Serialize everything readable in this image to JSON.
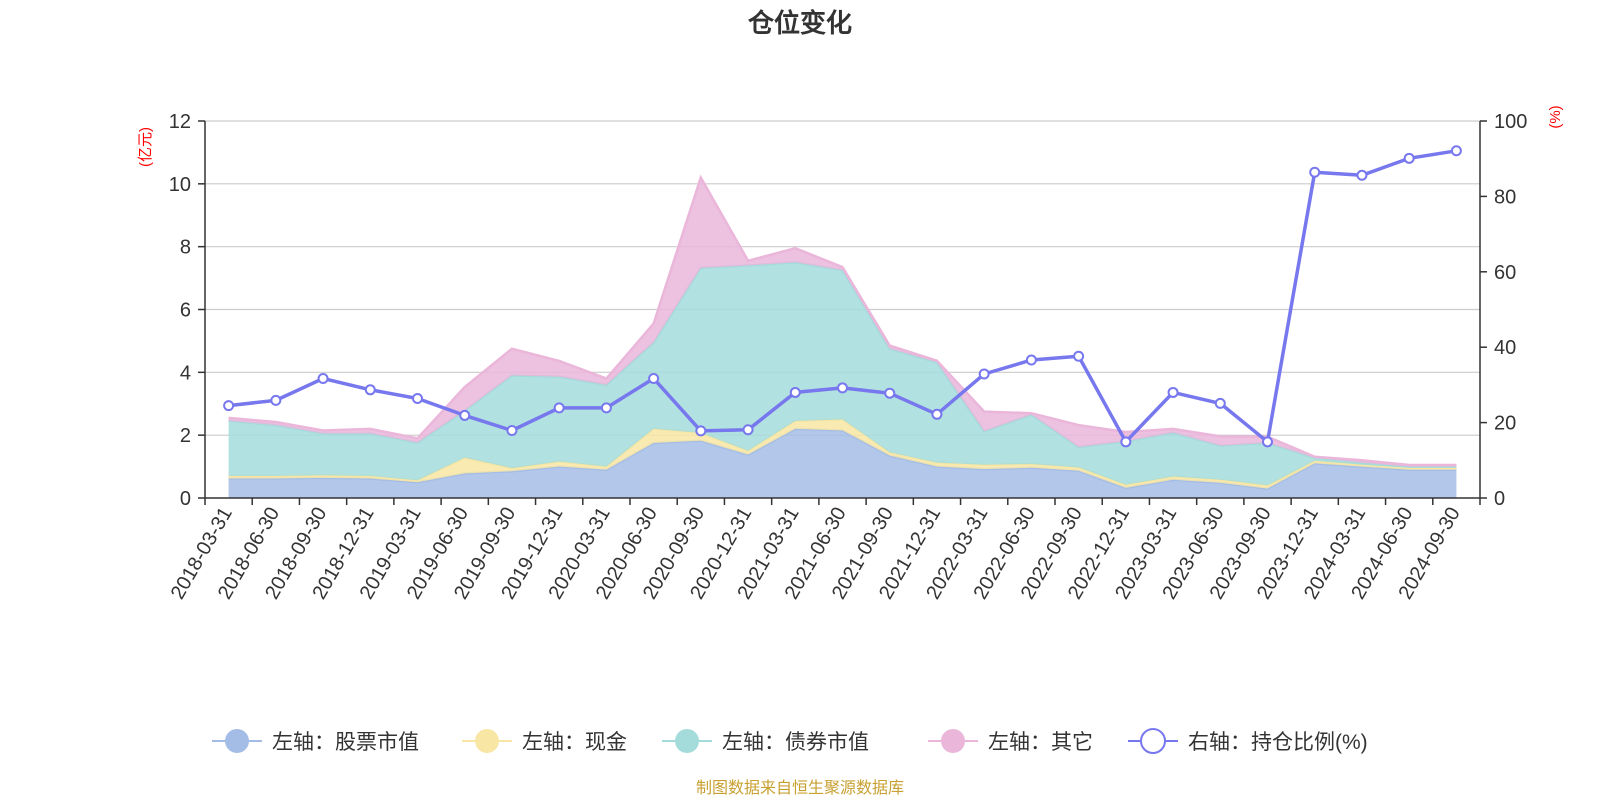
{
  "title": "仓位变化",
  "source_note": "制图数据来自恒生聚源数据库",
  "colors": {
    "stock": "#a4bde6",
    "cash": "#f8e6a4",
    "bond": "#a4dcdc",
    "other": "#eab6da",
    "ratio": "#7777ee"
  },
  "chart_data": {
    "type": "area",
    "stacked": true,
    "x": [
      "2018-03-31",
      "2018-06-30",
      "2018-09-30",
      "2018-12-31",
      "2019-03-31",
      "2019-06-30",
      "2019-09-30",
      "2019-12-31",
      "2020-03-31",
      "2020-06-30",
      "2020-09-30",
      "2020-12-31",
      "2021-03-31",
      "2021-06-30",
      "2021-09-30",
      "2021-12-31",
      "2022-03-31",
      "2022-06-30",
      "2022-09-30",
      "2022-12-31",
      "2023-03-31",
      "2023-06-30",
      "2023-09-30",
      "2023-12-31",
      "2024-03-31",
      "2024-06-30",
      "2024-09-30"
    ],
    "y_left": {
      "unit": "(亿元)",
      "range": [
        0,
        12
      ],
      "ticks": [
        0,
        2,
        4,
        6,
        8,
        10,
        12
      ]
    },
    "y_right": {
      "unit": "(%)",
      "range": [
        0,
        100
      ],
      "ticks": [
        0,
        20,
        40,
        60,
        80,
        100
      ]
    },
    "grid": true,
    "legend_position": "bottom",
    "series": [
      {
        "key": "stock",
        "name": "左轴：股票市值",
        "axis": "left",
        "type": "area",
        "values": [
          0.62,
          0.62,
          0.64,
          0.62,
          0.5,
          0.78,
          0.85,
          1.0,
          0.9,
          1.75,
          1.82,
          1.38,
          2.2,
          2.15,
          1.35,
          1.0,
          0.92,
          0.96,
          0.87,
          0.32,
          0.58,
          0.48,
          0.3,
          1.1,
          1.0,
          0.9,
          0.9
        ]
      },
      {
        "key": "cash",
        "name": "左轴：现金",
        "axis": "left",
        "type": "area",
        "values": [
          0.08,
          0.08,
          0.08,
          0.08,
          0.06,
          0.5,
          0.1,
          0.16,
          0.1,
          0.45,
          0.25,
          0.12,
          0.25,
          0.35,
          0.1,
          0.12,
          0.14,
          0.12,
          0.1,
          0.1,
          0.1,
          0.1,
          0.1,
          0.08,
          0.06,
          0.06,
          0.06
        ]
      },
      {
        "key": "bond",
        "name": "左轴：债券市值",
        "axis": "left",
        "type": "area",
        "values": [
          1.75,
          1.62,
          1.33,
          1.35,
          1.2,
          1.5,
          2.95,
          2.7,
          2.6,
          2.75,
          5.25,
          5.9,
          5.05,
          4.75,
          3.3,
          3.2,
          1.06,
          1.57,
          0.65,
          1.38,
          1.4,
          1.08,
          1.35,
          0.1,
          0.06,
          0.04,
          0.04
        ]
      },
      {
        "key": "other",
        "name": "左轴：其它",
        "axis": "left",
        "type": "area",
        "values": [
          0.1,
          0.1,
          0.1,
          0.15,
          0.14,
          0.75,
          0.85,
          0.5,
          0.2,
          0.6,
          2.88,
          0.15,
          0.45,
          0.1,
          0.1,
          0.05,
          0.63,
          0.05,
          0.7,
          0.3,
          0.12,
          0.3,
          0.2,
          0.03,
          0.08,
          0.05,
          0.05
        ]
      },
      {
        "key": "ratio",
        "name": "右轴：持仓比例(%)",
        "axis": "right",
        "type": "line",
        "values": [
          24.5,
          25.9,
          31.7,
          28.7,
          26.4,
          21.9,
          17.9,
          23.9,
          23.9,
          31.7,
          17.8,
          18.1,
          28.0,
          29.2,
          27.8,
          22.2,
          32.9,
          36.6,
          37.6,
          14.9,
          28.0,
          25.1,
          14.9,
          86.4,
          85.6,
          90.1,
          92.1
        ]
      }
    ]
  }
}
